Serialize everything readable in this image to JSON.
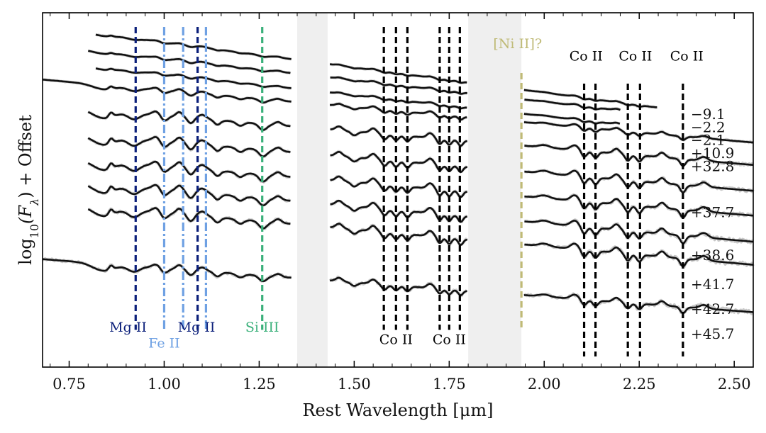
{
  "chart_data": {
    "type": "line",
    "title": "",
    "xlabel": "Rest Wavelength [μm]",
    "ylabel": "log10(Fλ) + Offset",
    "ylabel_parts": {
      "pre": "log",
      "sub1": "10",
      "mid": "(F",
      "sub2": "λ",
      "post": ") + Offset"
    },
    "xlim": [
      0.68,
      2.55
    ],
    "ylim": [
      0,
      1
    ],
    "xticks": [
      0.75,
      1.0,
      1.25,
      1.5,
      1.75,
      2.0,
      2.25,
      2.5
    ],
    "xtick_labels": [
      "0.75",
      "1.00",
      "1.25",
      "1.50",
      "1.75",
      "2.00",
      "2.25",
      "2.50"
    ],
    "grid": false,
    "telluric_bands": [
      [
        1.35,
        1.43
      ],
      [
        1.8,
        1.94
      ]
    ],
    "series": [
      {
        "name": "-9.1",
        "label": "−9.1",
        "x_start": 0.82,
        "x_end": 2.3,
        "y0": 0.945,
        "slope": 0.142,
        "amp": 0.005,
        "noise": 0.6,
        "seed": 1,
        "label_y": 0.7
      },
      {
        "name": "-2.2",
        "label": "−2.2",
        "x_start": 0.8,
        "x_end": 2.2,
        "y0": 0.895,
        "slope": 0.122,
        "amp": 0.006,
        "noise": 0.6,
        "seed": 2,
        "label_y": 0.663
      },
      {
        "name": "-2.1",
        "label": "−2.1",
        "x_start": 0.82,
        "x_end": 2.2,
        "y0": 0.85,
        "slope": 0.118,
        "amp": 0.006,
        "noise": 0.6,
        "seed": 3,
        "label_y": 0.627
      },
      {
        "name": "+10.9",
        "label": "+10.9",
        "x_start": 0.68,
        "x_end": 2.55,
        "y0": 0.8,
        "slope": 0.095,
        "amp": 0.012,
        "noise": 0.8,
        "seed": 4,
        "label_y": 0.59
      },
      {
        "name": "+32.8",
        "label": "+32.8",
        "x_start": 0.8,
        "x_end": 2.55,
        "y0": 0.728,
        "slope": 0.09,
        "amp": 0.022,
        "noise": 1.2,
        "seed": 5,
        "label_y": 0.553
      },
      {
        "name": "+37.7",
        "label": "+37.7",
        "x_start": 0.8,
        "x_end": 2.55,
        "y0": 0.655,
        "slope": 0.09,
        "amp": 0.024,
        "noise": 1.4,
        "seed": 6,
        "label_y": 0.423
      },
      {
        "name": "+38.6",
        "label": "+38.6",
        "x_start": 0.8,
        "x_end": 2.55,
        "y0": 0.585,
        "slope": 0.09,
        "amp": 0.025,
        "noise": 1.6,
        "seed": 7,
        "label_y": 0.302
      },
      {
        "name": "+41.7",
        "label": "+41.7",
        "x_start": 0.8,
        "x_end": 2.55,
        "y0": 0.52,
        "slope": 0.095,
        "amp": 0.025,
        "noise": 1.8,
        "seed": 8,
        "label_y": 0.22
      },
      {
        "name": "+42.7",
        "label": "+42.7",
        "x_start": 0.8,
        "x_end": 2.55,
        "y0": 0.455,
        "slope": 0.095,
        "amp": 0.025,
        "noise": 2.0,
        "seed": 9,
        "label_y": 0.15
      },
      {
        "name": "+45.7",
        "label": "+45.7",
        "x_start": 0.68,
        "x_end": 2.55,
        "y0": 0.295,
        "slope": 0.08,
        "amp": 0.02,
        "noise": 2.2,
        "seed": 10,
        "label_y": 0.08
      }
    ],
    "line_ids": [
      {
        "ion": "Mg II",
        "color": "#0b1f7a",
        "style": "dashed",
        "x": [
          0.925
        ],
        "y_top": 0.96,
        "y_bottom": 0.105
      },
      {
        "ion": "Fe II",
        "color": "#6fa1e3",
        "style": "dashdot",
        "x": [
          1.0,
          1.05,
          1.11
        ],
        "y_top": 0.96,
        "y_bottom": 0.105
      },
      {
        "ion": "Mg II",
        "color": "#0b1f7a",
        "style": "dashed",
        "x": [
          1.088
        ],
        "y_top": 0.96,
        "y_bottom": 0.105
      },
      {
        "ion": "Si III",
        "color": "#3ab07a",
        "style": "dashed",
        "x": [
          1.258
        ],
        "y_top": 0.96,
        "y_bottom": 0.105
      },
      {
        "ion": "Co II",
        "color": "#000000",
        "style": "dashed",
        "x": [
          1.578,
          1.61,
          1.64
        ],
        "y_top": 0.96,
        "y_bottom": 0.105
      },
      {
        "ion": "Co II",
        "color": "#000000",
        "style": "dashed",
        "x": [
          1.725,
          1.75,
          1.778
        ],
        "y_top": 0.96,
        "y_bottom": 0.105
      },
      {
        "ion": "[Ni II]?",
        "color": "#bfba76",
        "style": "dashed",
        "x": [
          1.94
        ],
        "y_top": 0.83,
        "y_bottom": 0.105
      },
      {
        "ion": "Co II",
        "color": "#000000",
        "style": "dashed",
        "x": [
          2.105,
          2.135
        ],
        "y_top": 0.8,
        "y_bottom": 0.03
      },
      {
        "ion": "Co II",
        "color": "#000000",
        "style": "dashed",
        "x": [
          2.22,
          2.252
        ],
        "y_top": 0.8,
        "y_bottom": 0.03
      },
      {
        "ion": "Co II",
        "color": "#000000",
        "style": "dashed",
        "x": [
          2.365
        ],
        "y_top": 0.8,
        "y_bottom": 0.03
      }
    ],
    "annotations": [
      {
        "text": "Mg II",
        "x": 0.905,
        "y": 0.1,
        "color": "#0b1f7a"
      },
      {
        "text": "Fe II",
        "x": 1.0,
        "y": 0.055,
        "color": "#6fa1e3"
      },
      {
        "text": "Mg II",
        "x": 1.085,
        "y": 0.1,
        "color": "#0b1f7a"
      },
      {
        "text": "Si III",
        "x": 1.258,
        "y": 0.1,
        "color": "#3ab07a"
      },
      {
        "text": "Co II",
        "x": 1.61,
        "y": 0.065,
        "color": "#000000"
      },
      {
        "text": "Co II",
        "x": 1.75,
        "y": 0.065,
        "color": "#000000"
      },
      {
        "text": "[Ni II]?",
        "x": 1.93,
        "y": 0.9,
        "color": "#bfba76"
      },
      {
        "text": "Co II",
        "x": 2.11,
        "y": 0.865,
        "color": "#000000"
      },
      {
        "text": "Co II",
        "x": 2.24,
        "y": 0.865,
        "color": "#000000"
      },
      {
        "text": "Co II",
        "x": 2.375,
        "y": 0.865,
        "color": "#000000"
      }
    ]
  }
}
